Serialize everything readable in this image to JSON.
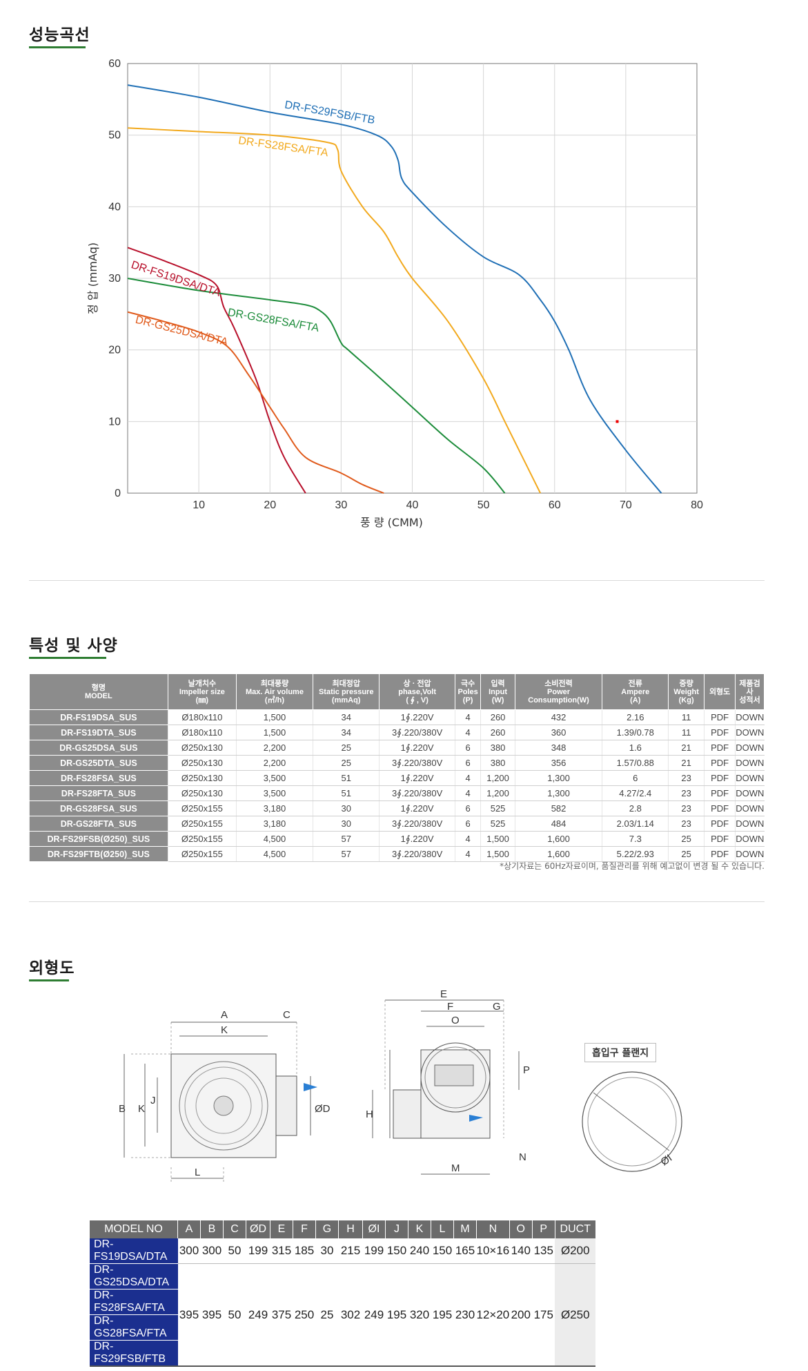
{
  "sections": {
    "performance_title": "성능곡선",
    "spec_title": "특성 및 사양",
    "outline_title": "외형도"
  },
  "chart_data": {
    "type": "line",
    "xlabel": "풍 량 (CMM)",
    "ylabel": "정 압 (mmAq)",
    "xlim": [
      0,
      80
    ],
    "ylim": [
      0,
      60
    ],
    "xticks": [
      10,
      20,
      30,
      40,
      50,
      60,
      70,
      80
    ],
    "yticks": [
      0,
      10,
      20,
      30,
      40,
      50,
      60
    ],
    "grid": true,
    "series": [
      {
        "name": "DR-FS29FSB/FTB",
        "color": "#1f6fb5",
        "x": [
          0,
          10,
          20,
          30,
          35,
          37,
          38,
          38.5,
          40,
          45,
          50,
          55,
          58,
          60,
          62,
          65,
          70,
          75
        ],
        "y": [
          57,
          55.3,
          53.2,
          51.5,
          50,
          48.5,
          46.5,
          44,
          42,
          37,
          33,
          30.5,
          27,
          24,
          20,
          13,
          6,
          0
        ]
      },
      {
        "name": "DR-FS28FSA/FTA",
        "color": "#f2a91d",
        "x": [
          0,
          10,
          20,
          28,
          29.5,
          30,
          33,
          36,
          38,
          40,
          45,
          50,
          53,
          55,
          57,
          58
        ],
        "y": [
          51,
          50.5,
          50,
          49,
          48,
          45,
          40,
          36.5,
          33,
          30,
          24,
          16,
          10,
          6,
          2,
          0
        ]
      },
      {
        "name": "DR-FS19DSA/DTA",
        "color": "#b8102b",
        "x": [
          0,
          5,
          10,
          12.5,
          13.5,
          15,
          18,
          20,
          22,
          25
        ],
        "y": [
          34.3,
          32.5,
          30.5,
          29,
          26,
          23,
          16,
          10,
          5,
          0
        ]
      },
      {
        "name": "DR-GS28FSA/FTA",
        "color": "#1c8c3a",
        "x": [
          0,
          10,
          20,
          25,
          27,
          28.5,
          30,
          31,
          35,
          40,
          45,
          50,
          53
        ],
        "y": [
          30,
          28.3,
          27,
          26.3,
          25.5,
          24,
          21,
          20,
          16.5,
          12,
          7.5,
          3.5,
          0
        ]
      },
      {
        "name": "DR-GS25DSA/DTA",
        "color": "#e05a1b",
        "x": [
          0,
          5,
          10,
          14,
          17,
          20,
          22,
          25,
          30,
          33,
          36
        ],
        "y": [
          25.3,
          24,
          22.5,
          20.5,
          16.5,
          12,
          9,
          5,
          2.8,
          1.2,
          0
        ]
      }
    ]
  },
  "spec_table": {
    "headers": [
      "형명\nMODEL",
      "날개치수\nImpeller size\n(㎜)",
      "최대풍량\nMax. Air volume\n(㎥/h)",
      "최대정압\nStatic pressure\n(mmAq)",
      "상 · 전압\nphase,Volt\n( ∮ , V)",
      "극수\nPoles\n(P)",
      "입력\nInput\n(W)",
      "소비전력\nPower\nConsumption(W)",
      "전류\nAmpere\n(A)",
      "중량\nWeight\n(Kg)",
      "외형도",
      "제품검\n사\n성적서"
    ],
    "rows": [
      [
        "DR-FS19DSA_SUS",
        "Ø180x110",
        "1,500",
        "34",
        "1∮.220V",
        "4",
        "260",
        "432",
        "2.16",
        "11",
        "PDF",
        "DOWN"
      ],
      [
        "DR-FS19DTA_SUS",
        "Ø180x110",
        "1,500",
        "34",
        "3∮.220/380V",
        "4",
        "260",
        "360",
        "1.39/0.78",
        "11",
        "PDF",
        "DOWN"
      ],
      [
        "DR-GS25DSA_SUS",
        "Ø250x130",
        "2,200",
        "25",
        "1∮.220V",
        "6",
        "380",
        "348",
        "1.6",
        "21",
        "PDF",
        "DOWN"
      ],
      [
        "DR-GS25DTA_SUS",
        "Ø250x130",
        "2,200",
        "25",
        "3∮.220/380V",
        "6",
        "380",
        "356",
        "1.57/0.88",
        "21",
        "PDF",
        "DOWN"
      ],
      [
        "DR-FS28FSA_SUS",
        "Ø250x130",
        "3,500",
        "51",
        "1∮.220V",
        "4",
        "1,200",
        "1,300",
        "6",
        "23",
        "PDF",
        "DOWN"
      ],
      [
        "DR-FS28FTA_SUS",
        "Ø250x130",
        "3,500",
        "51",
        "3∮.220/380V",
        "4",
        "1,200",
        "1,300",
        "4.27/2.4",
        "23",
        "PDF",
        "DOWN"
      ],
      [
        "DR-GS28FSA_SUS",
        "Ø250x155",
        "3,180",
        "30",
        "1∮.220V",
        "6",
        "525",
        "582",
        "2.8",
        "23",
        "PDF",
        "DOWN"
      ],
      [
        "DR-GS28FTA_SUS",
        "Ø250x155",
        "3,180",
        "30",
        "3∮.220/380V",
        "6",
        "525",
        "484",
        "2.03/1.14",
        "23",
        "PDF",
        "DOWN"
      ],
      [
        "DR-FS29FSB(Ø250)_SUS",
        "Ø250x155",
        "4,500",
        "57",
        "1∮.220V",
        "4",
        "1,500",
        "1,600",
        "7.3",
        "25",
        "PDF",
        "DOWN"
      ],
      [
        "DR-FS29FTB(Ø250)_SUS",
        "Ø250x155",
        "4,500",
        "57",
        "3∮.220/380V",
        "4",
        "1,500",
        "1,600",
        "5.22/2.93",
        "25",
        "PDF",
        "DOWN"
      ]
    ],
    "note": "*상기자료는 60Hz자료이며, 품질관리를 위해 예고없이 변경 될 수 있습니다."
  },
  "drawings": {
    "front_labels": {
      "A": "A",
      "C": "C",
      "K": "K",
      "B": "B",
      "K2": "K",
      "J": "J",
      "D": "ØD",
      "L": "L"
    },
    "side_labels": {
      "E": "E",
      "F": "F",
      "G": "G",
      "O": "O",
      "P": "P",
      "H": "H",
      "M": "M",
      "N": "N"
    },
    "flange_title": "흡입구 플랜지",
    "flange_label": "ØI"
  },
  "dim_table": {
    "headers": [
      "MODEL NO",
      "A",
      "B",
      "C",
      "ØD",
      "E",
      "F",
      "G",
      "H",
      "ØI",
      "J",
      "K",
      "L",
      "M",
      "N",
      "O",
      "P",
      "DUCT"
    ],
    "group1": {
      "models": [
        "DR-FS19DSA/DTA"
      ],
      "values": [
        "300",
        "300",
        "50",
        "199",
        "315",
        "185",
        "30",
        "215",
        "199",
        "150",
        "240",
        "150",
        "165",
        "10×16",
        "140",
        "135",
        "Ø200"
      ]
    },
    "group2": {
      "models": [
        "DR-GS25DSA/DTA",
        "DR-FS28FSA/FTA",
        "DR-GS28FSA/FTA",
        "DR-FS29FSB/FTB"
      ],
      "values": [
        "395",
        "395",
        "50",
        "249",
        "375",
        "250",
        "25",
        "302",
        "249",
        "195",
        "320",
        "195",
        "230",
        "12×20",
        "200",
        "175",
        "Ø250"
      ]
    }
  }
}
